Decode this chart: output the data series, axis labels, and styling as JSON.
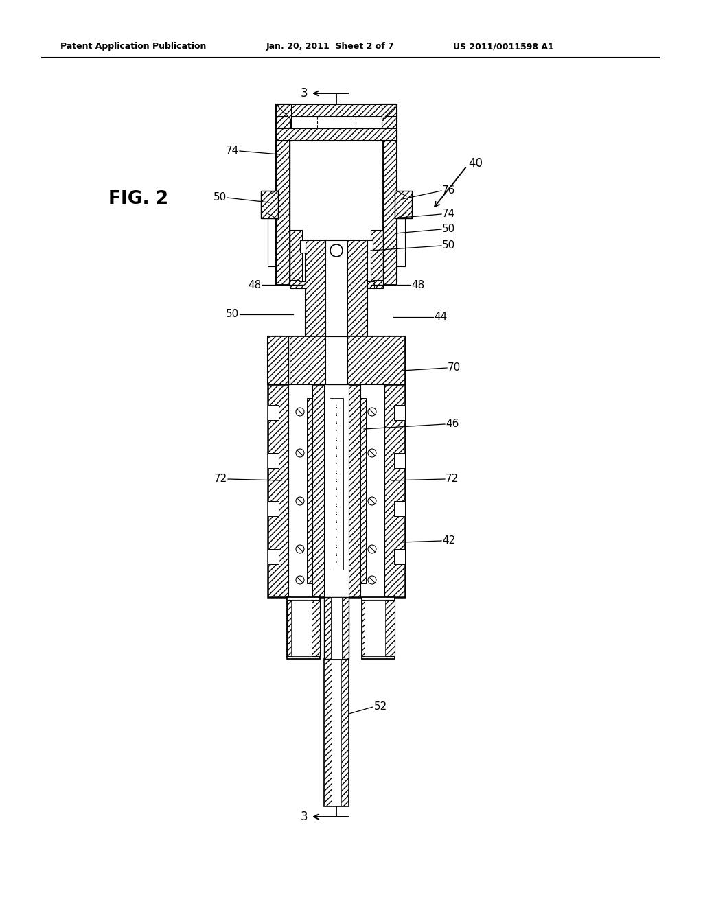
{
  "title_left": "Patent Application Publication",
  "title_center": "Jan. 20, 2011  Sheet 2 of 7",
  "title_right": "US 2011/0011598 A1",
  "fig_label": "FIG. 2",
  "background_color": "#ffffff",
  "line_color": "#000000"
}
